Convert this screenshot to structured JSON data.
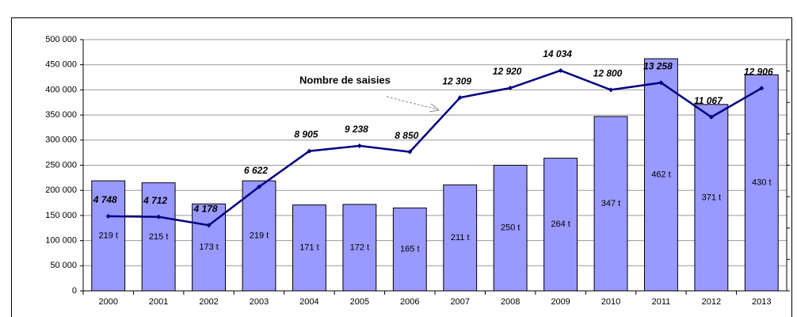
{
  "chart_data": {
    "type": "bar-line",
    "categories": [
      "2000",
      "2001",
      "2002",
      "2003",
      "2004",
      "2005",
      "2006",
      "2007",
      "2008",
      "2009",
      "2010",
      "2011",
      "2012",
      "2013"
    ],
    "series": [
      {
        "type": "bar",
        "color": "#9999ff",
        "values": [
          219000,
          215000,
          173000,
          219000,
          171000,
          172000,
          165000,
          211000,
          250000,
          264000,
          347000,
          462000,
          371000,
          430000
        ],
        "value_labels": [
          "219 t",
          "215 t",
          "173 t",
          "219 t",
          "171 t",
          "172 t",
          "165 t",
          "211 t",
          "250 t",
          "264 t",
          "347 t",
          "462 t",
          "371 t",
          "430 t"
        ]
      },
      {
        "type": "line",
        "axis": "y2",
        "color": "#000080",
        "values": [
          4748,
          4712,
          4178,
          6622,
          8905,
          9238,
          8850,
          12309,
          12920,
          14034,
          12800,
          13258,
          11067,
          12906
        ],
        "value_labels": [
          "4 748",
          "4 712",
          "4 178",
          "6 622",
          "8 905",
          "9 238",
          "8 850",
          "12 309",
          "12 920",
          "14 034",
          "12 800",
          "13 258",
          "11 067",
          "12 906"
        ]
      }
    ],
    "annotation": "Nombre de saisies",
    "ylim": [
      0,
      500000
    ],
    "yticks": [
      {
        "value": 0,
        "label": "0"
      },
      {
        "value": 50000,
        "label": "50 000"
      },
      {
        "value": 100000,
        "label": "100 000"
      },
      {
        "value": 150000,
        "label": "150 000"
      },
      {
        "value": 200000,
        "label": "200 000"
      },
      {
        "value": 250000,
        "label": "250 000"
      },
      {
        "value": 300000,
        "label": "300 000"
      },
      {
        "value": 350000,
        "label": "350 000"
      },
      {
        "value": 400000,
        "label": "400 000"
      },
      {
        "value": 450000,
        "label": "450 000"
      },
      {
        "value": 500000,
        "label": "500 000"
      }
    ],
    "y2lim": [
      0,
      16000
    ],
    "y2ticks": [
      0,
      2000,
      4000,
      6000,
      8000,
      10000,
      12000,
      14000,
      16000
    ],
    "grid": true
  }
}
